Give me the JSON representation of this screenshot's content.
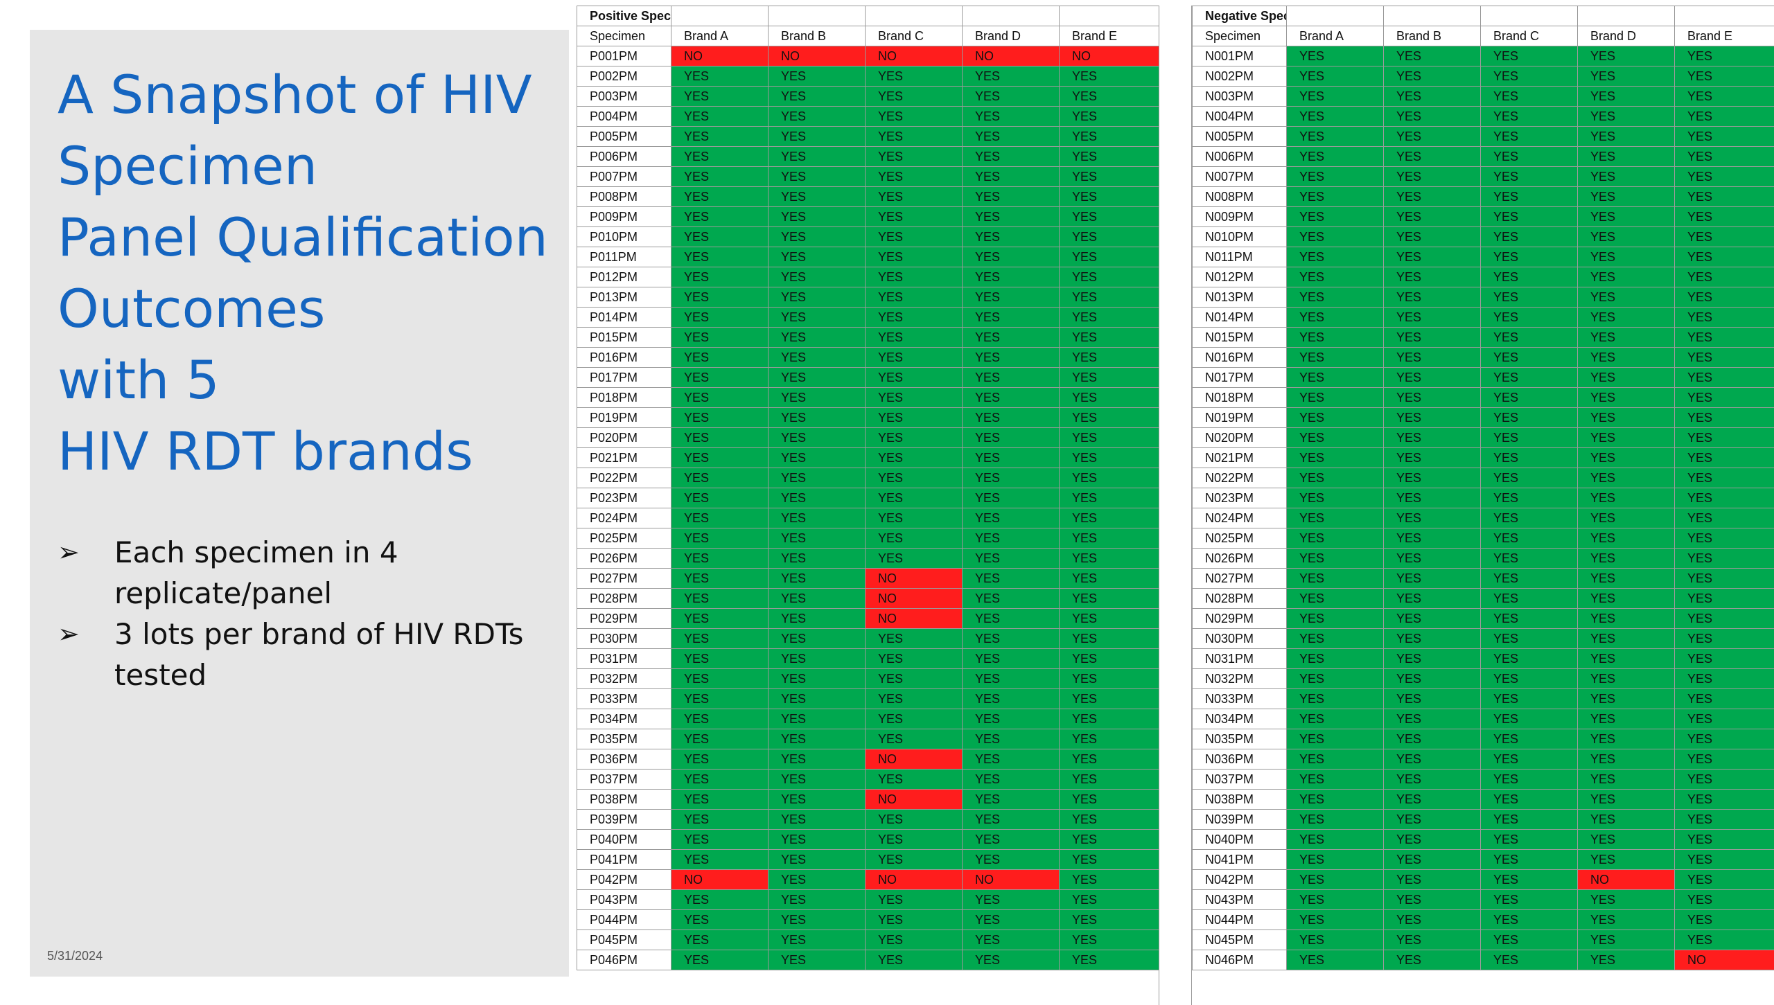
{
  "slide": {
    "title_lines": [
      "A Snapshot of HIV",
      "Specimen",
      "Panel Qualification",
      "Outcomes",
      "with 5",
      "HIV RDT brands"
    ],
    "bullets": [
      "Each specimen in 4 replicate/panel",
      "3 lots per brand of HIV RDTs tested"
    ],
    "bullet_icon": "arrow-bullet-icon",
    "date": "5/31/2024"
  },
  "colors": {
    "yes": "#00a84f",
    "no": "#ff1d1d",
    "title": "#1565c0",
    "panel": "#e6e6e6"
  },
  "tables": [
    {
      "title": "Positive Specimens",
      "columns": [
        "Specimen",
        "Brand A",
        "Brand B",
        "Brand C",
        "Brand D",
        "Brand E"
      ],
      "rows": [
        [
          "P001PM",
          "NO",
          "NO",
          "NO",
          "NO",
          "NO"
        ],
        [
          "P002PM",
          "YES",
          "YES",
          "YES",
          "YES",
          "YES"
        ],
        [
          "P003PM",
          "YES",
          "YES",
          "YES",
          "YES",
          "YES"
        ],
        [
          "P004PM",
          "YES",
          "YES",
          "YES",
          "YES",
          "YES"
        ],
        [
          "P005PM",
          "YES",
          "YES",
          "YES",
          "YES",
          "YES"
        ],
        [
          "P006PM",
          "YES",
          "YES",
          "YES",
          "YES",
          "YES"
        ],
        [
          "P007PM",
          "YES",
          "YES",
          "YES",
          "YES",
          "YES"
        ],
        [
          "P008PM",
          "YES",
          "YES",
          "YES",
          "YES",
          "YES"
        ],
        [
          "P009PM",
          "YES",
          "YES",
          "YES",
          "YES",
          "YES"
        ],
        [
          "P010PM",
          "YES",
          "YES",
          "YES",
          "YES",
          "YES"
        ],
        [
          "P011PM",
          "YES",
          "YES",
          "YES",
          "YES",
          "YES"
        ],
        [
          "P012PM",
          "YES",
          "YES",
          "YES",
          "YES",
          "YES"
        ],
        [
          "P013PM",
          "YES",
          "YES",
          "YES",
          "YES",
          "YES"
        ],
        [
          "P014PM",
          "YES",
          "YES",
          "YES",
          "YES",
          "YES"
        ],
        [
          "P015PM",
          "YES",
          "YES",
          "YES",
          "YES",
          "YES"
        ],
        [
          "P016PM",
          "YES",
          "YES",
          "YES",
          "YES",
          "YES"
        ],
        [
          "P017PM",
          "YES",
          "YES",
          "YES",
          "YES",
          "YES"
        ],
        [
          "P018PM",
          "YES",
          "YES",
          "YES",
          "YES",
          "YES"
        ],
        [
          "P019PM",
          "YES",
          "YES",
          "YES",
          "YES",
          "YES"
        ],
        [
          "P020PM",
          "YES",
          "YES",
          "YES",
          "YES",
          "YES"
        ],
        [
          "P021PM",
          "YES",
          "YES",
          "YES",
          "YES",
          "YES"
        ],
        [
          "P022PM",
          "YES",
          "YES",
          "YES",
          "YES",
          "YES"
        ],
        [
          "P023PM",
          "YES",
          "YES",
          "YES",
          "YES",
          "YES"
        ],
        [
          "P024PM",
          "YES",
          "YES",
          "YES",
          "YES",
          "YES"
        ],
        [
          "P025PM",
          "YES",
          "YES",
          "YES",
          "YES",
          "YES"
        ],
        [
          "P026PM",
          "YES",
          "YES",
          "YES",
          "YES",
          "YES"
        ],
        [
          "P027PM",
          "YES",
          "YES",
          "NO",
          "YES",
          "YES"
        ],
        [
          "P028PM",
          "YES",
          "YES",
          "NO",
          "YES",
          "YES"
        ],
        [
          "P029PM",
          "YES",
          "YES",
          "NO",
          "YES",
          "YES"
        ],
        [
          "P030PM",
          "YES",
          "YES",
          "YES",
          "YES",
          "YES"
        ],
        [
          "P031PM",
          "YES",
          "YES",
          "YES",
          "YES",
          "YES"
        ],
        [
          "P032PM",
          "YES",
          "YES",
          "YES",
          "YES",
          "YES"
        ],
        [
          "P033PM",
          "YES",
          "YES",
          "YES",
          "YES",
          "YES"
        ],
        [
          "P034PM",
          "YES",
          "YES",
          "YES",
          "YES",
          "YES"
        ],
        [
          "P035PM",
          "YES",
          "YES",
          "YES",
          "YES",
          "YES"
        ],
        [
          "P036PM",
          "YES",
          "YES",
          "NO",
          "YES",
          "YES"
        ],
        [
          "P037PM",
          "YES",
          "YES",
          "YES",
          "YES",
          "YES"
        ],
        [
          "P038PM",
          "YES",
          "YES",
          "NO",
          "YES",
          "YES"
        ],
        [
          "P039PM",
          "YES",
          "YES",
          "YES",
          "YES",
          "YES"
        ],
        [
          "P040PM",
          "YES",
          "YES",
          "YES",
          "YES",
          "YES"
        ],
        [
          "P041PM",
          "YES",
          "YES",
          "YES",
          "YES",
          "YES"
        ],
        [
          "P042PM",
          "NO",
          "YES",
          "NO",
          "NO",
          "YES"
        ],
        [
          "P043PM",
          "YES",
          "YES",
          "YES",
          "YES",
          "YES"
        ],
        [
          "P044PM",
          "YES",
          "YES",
          "YES",
          "YES",
          "YES"
        ],
        [
          "P045PM",
          "YES",
          "YES",
          "YES",
          "YES",
          "YES"
        ],
        [
          "P046PM",
          "YES",
          "YES",
          "YES",
          "YES",
          "YES"
        ]
      ]
    },
    {
      "title": "Negative Specimens",
      "columns": [
        "Specimen",
        "Brand A",
        "Brand B",
        "Brand C",
        "Brand D",
        "Brand E"
      ],
      "rows": [
        [
          "N001PM",
          "YES",
          "YES",
          "YES",
          "YES",
          "YES"
        ],
        [
          "N002PM",
          "YES",
          "YES",
          "YES",
          "YES",
          "YES"
        ],
        [
          "N003PM",
          "YES",
          "YES",
          "YES",
          "YES",
          "YES"
        ],
        [
          "N004PM",
          "YES",
          "YES",
          "YES",
          "YES",
          "YES"
        ],
        [
          "N005PM",
          "YES",
          "YES",
          "YES",
          "YES",
          "YES"
        ],
        [
          "N006PM",
          "YES",
          "YES",
          "YES",
          "YES",
          "YES"
        ],
        [
          "N007PM",
          "YES",
          "YES",
          "YES",
          "YES",
          "YES"
        ],
        [
          "N008PM",
          "YES",
          "YES",
          "YES",
          "YES",
          "YES"
        ],
        [
          "N009PM",
          "YES",
          "YES",
          "YES",
          "YES",
          "YES"
        ],
        [
          "N010PM",
          "YES",
          "YES",
          "YES",
          "YES",
          "YES"
        ],
        [
          "N011PM",
          "YES",
          "YES",
          "YES",
          "YES",
          "YES"
        ],
        [
          "N012PM",
          "YES",
          "YES",
          "YES",
          "YES",
          "YES"
        ],
        [
          "N013PM",
          "YES",
          "YES",
          "YES",
          "YES",
          "YES"
        ],
        [
          "N014PM",
          "YES",
          "YES",
          "YES",
          "YES",
          "YES"
        ],
        [
          "N015PM",
          "YES",
          "YES",
          "YES",
          "YES",
          "YES"
        ],
        [
          "N016PM",
          "YES",
          "YES",
          "YES",
          "YES",
          "YES"
        ],
        [
          "N017PM",
          "YES",
          "YES",
          "YES",
          "YES",
          "YES"
        ],
        [
          "N018PM",
          "YES",
          "YES",
          "YES",
          "YES",
          "YES"
        ],
        [
          "N019PM",
          "YES",
          "YES",
          "YES",
          "YES",
          "YES"
        ],
        [
          "N020PM",
          "YES",
          "YES",
          "YES",
          "YES",
          "YES"
        ],
        [
          "N021PM",
          "YES",
          "YES",
          "YES",
          "YES",
          "YES"
        ],
        [
          "N022PM",
          "YES",
          "YES",
          "YES",
          "YES",
          "YES"
        ],
        [
          "N023PM",
          "YES",
          "YES",
          "YES",
          "YES",
          "YES"
        ],
        [
          "N024PM",
          "YES",
          "YES",
          "YES",
          "YES",
          "YES"
        ],
        [
          "N025PM",
          "YES",
          "YES",
          "YES",
          "YES",
          "YES"
        ],
        [
          "N026PM",
          "YES",
          "YES",
          "YES",
          "YES",
          "YES"
        ],
        [
          "N027PM",
          "YES",
          "YES",
          "YES",
          "YES",
          "YES"
        ],
        [
          "N028PM",
          "YES",
          "YES",
          "YES",
          "YES",
          "YES"
        ],
        [
          "N029PM",
          "YES",
          "YES",
          "YES",
          "YES",
          "YES"
        ],
        [
          "N030PM",
          "YES",
          "YES",
          "YES",
          "YES",
          "YES"
        ],
        [
          "N031PM",
          "YES",
          "YES",
          "YES",
          "YES",
          "YES"
        ],
        [
          "N032PM",
          "YES",
          "YES",
          "YES",
          "YES",
          "YES"
        ],
        [
          "N033PM",
          "YES",
          "YES",
          "YES",
          "YES",
          "YES"
        ],
        [
          "N034PM",
          "YES",
          "YES",
          "YES",
          "YES",
          "YES"
        ],
        [
          "N035PM",
          "YES",
          "YES",
          "YES",
          "YES",
          "YES"
        ],
        [
          "N036PM",
          "YES",
          "YES",
          "YES",
          "YES",
          "YES"
        ],
        [
          "N037PM",
          "YES",
          "YES",
          "YES",
          "YES",
          "YES"
        ],
        [
          "N038PM",
          "YES",
          "YES",
          "YES",
          "YES",
          "YES"
        ],
        [
          "N039PM",
          "YES",
          "YES",
          "YES",
          "YES",
          "YES"
        ],
        [
          "N040PM",
          "YES",
          "YES",
          "YES",
          "YES",
          "YES"
        ],
        [
          "N041PM",
          "YES",
          "YES",
          "YES",
          "YES",
          "YES"
        ],
        [
          "N042PM",
          "YES",
          "YES",
          "YES",
          "NO",
          "YES"
        ],
        [
          "N043PM",
          "YES",
          "YES",
          "YES",
          "YES",
          "YES"
        ],
        [
          "N044PM",
          "YES",
          "YES",
          "YES",
          "YES",
          "YES"
        ],
        [
          "N045PM",
          "YES",
          "YES",
          "YES",
          "YES",
          "YES"
        ],
        [
          "N046PM",
          "YES",
          "YES",
          "YES",
          "YES",
          "NO"
        ]
      ]
    }
  ]
}
